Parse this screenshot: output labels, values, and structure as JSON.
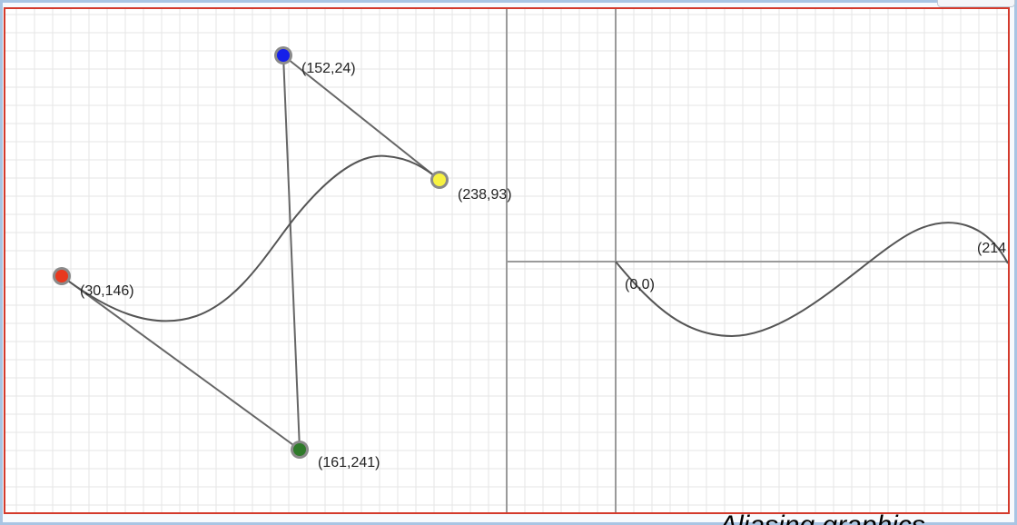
{
  "bezier": {
    "points": [
      {
        "id": "red",
        "label": "(30,146)",
        "color": "#e8391f"
      },
      {
        "id": "blue",
        "label": "(152,24)",
        "color": "#1620ea"
      },
      {
        "id": "yellow",
        "label": "(238,93)",
        "color": "#f7f241"
      },
      {
        "id": "green",
        "label": "(161,241)",
        "color": "#2f7a2a"
      }
    ]
  },
  "wave": {
    "origin_label": "(0,0)",
    "end_label": "(214"
  },
  "caption": "Aliasing graphics"
}
